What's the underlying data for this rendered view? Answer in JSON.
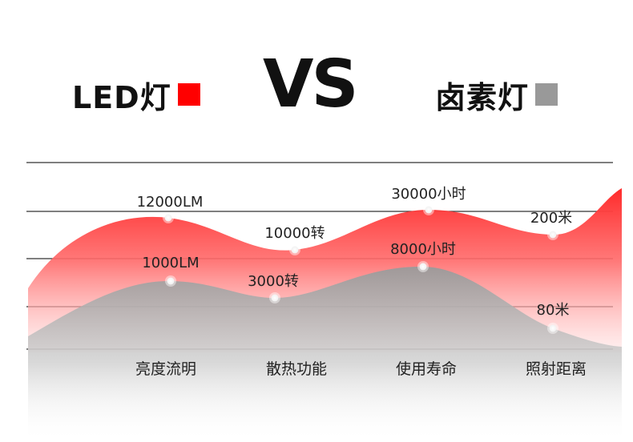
{
  "legend": {
    "led": {
      "label": "LED灯",
      "color": "#ff0000"
    },
    "halogen": {
      "label": "卤素灯",
      "color": "#999999"
    }
  },
  "vs": "VS",
  "chart_data": {
    "type": "area",
    "categories": [
      "亮度流明",
      "散热功能",
      "使用寿命",
      "照射距离"
    ],
    "series": [
      {
        "name": "LED灯",
        "labels": [
          "12000LM",
          "10000转",
          "30000小时",
          "200米"
        ]
      },
      {
        "name": "卤素灯",
        "labels": [
          "1000LM",
          "3000转",
          "8000小时",
          "80米"
        ]
      }
    ],
    "grid": true,
    "legend_position": "top"
  }
}
